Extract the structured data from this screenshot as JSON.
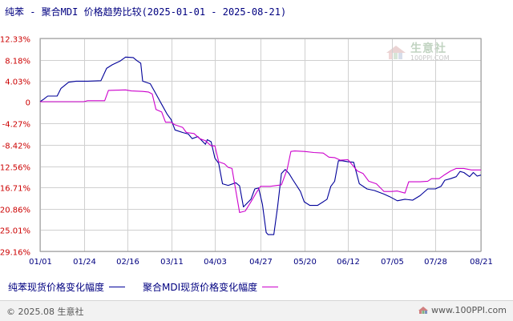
{
  "title": "纯苯 - 聚合MDI 价格趋势比较(2025-01-01 - 2025-08-21)",
  "watermark": {
    "name": "生意社",
    "site": "100PPI.COM"
  },
  "footer": {
    "copyright": "© 2025.08 生意社",
    "site": "www.100PPI.com"
  },
  "colors": {
    "series1": "#000099",
    "series2": "#cc00cc",
    "grid": "#d0d0d0",
    "text": "#000080"
  },
  "chart_data": {
    "type": "line",
    "title": "纯苯 - 聚合MDI 价格趋势比较(2025-01-01 - 2025-08-21)",
    "grid": true,
    "legend_position": "bottom",
    "x_range": [
      "2025-01-01",
      "2025-08-21"
    ],
    "x_ticks": [
      "01/01",
      "01/24",
      "02/16",
      "03/11",
      "04/03",
      "04/27",
      "05/20",
      "06/12",
      "07/05",
      "07/28",
      "08/21"
    ],
    "x_tick_dates": [
      "2025-01-01",
      "2025-01-24",
      "2025-02-16",
      "2025-03-11",
      "2025-04-03",
      "2025-04-27",
      "2025-05-20",
      "2025-06-12",
      "2025-07-05",
      "2025-07-28",
      "2025-08-21"
    ],
    "y_ticks": [
      12.33,
      8.18,
      4.03,
      0,
      -4.27,
      -8.42,
      -12.56,
      -16.71,
      -20.86,
      -25.01,
      -29.16
    ],
    "y_tick_labels": [
      "12.33%",
      "8.18%",
      "4.03%",
      "0",
      "-4.27%",
      "-8.42%",
      "-12.56%",
      "-16.71%",
      "-20.86%",
      "-25.01%",
      "-29.16%"
    ],
    "ylim": [
      -29.16,
      12.33
    ],
    "series": [
      {
        "name": "纯苯现货价格变化幅度",
        "points": [
          [
            "2025-01-01",
            0
          ],
          [
            "2025-01-03",
            0.5
          ],
          [
            "2025-01-05",
            1.1
          ],
          [
            "2025-01-10",
            1.1
          ],
          [
            "2025-01-12",
            2.6
          ],
          [
            "2025-01-16",
            3.8
          ],
          [
            "2025-01-20",
            4.0
          ],
          [
            "2025-01-26",
            4.0
          ],
          [
            "2025-02-02",
            4.1
          ],
          [
            "2025-02-05",
            6.5
          ],
          [
            "2025-02-08",
            7.2
          ],
          [
            "2025-02-12",
            7.9
          ],
          [
            "2025-02-15",
            8.7
          ],
          [
            "2025-02-19",
            8.6
          ],
          [
            "2025-02-21",
            8.0
          ],
          [
            "2025-02-23",
            7.5
          ],
          [
            "2025-02-24",
            4.0
          ],
          [
            "2025-02-28",
            3.5
          ],
          [
            "2025-03-03",
            1.5
          ],
          [
            "2025-03-06",
            -0.5
          ],
          [
            "2025-03-09",
            -2.5
          ],
          [
            "2025-03-11",
            -3.5
          ],
          [
            "2025-03-13",
            -5.5
          ],
          [
            "2025-03-17",
            -6.0
          ],
          [
            "2025-03-20",
            -6.3
          ],
          [
            "2025-03-22",
            -7.2
          ],
          [
            "2025-03-25",
            -6.8
          ],
          [
            "2025-03-29",
            -8.3
          ],
          [
            "2025-03-30",
            -7.4
          ],
          [
            "2025-04-01",
            -7.8
          ],
          [
            "2025-04-03",
            -11.0
          ],
          [
            "2025-04-05",
            -12.0
          ],
          [
            "2025-04-07",
            -16.0
          ],
          [
            "2025-04-10",
            -16.3
          ],
          [
            "2025-04-14",
            -15.8
          ],
          [
            "2025-04-16",
            -16.4
          ],
          [
            "2025-04-18",
            -20.5
          ],
          [
            "2025-04-22",
            -19.0
          ],
          [
            "2025-04-24",
            -17.0
          ],
          [
            "2025-04-26",
            -16.8
          ],
          [
            "2025-04-28",
            -20.0
          ],
          [
            "2025-04-30",
            -25.5
          ],
          [
            "2025-05-01",
            -25.9
          ],
          [
            "2025-05-04",
            -25.9
          ],
          [
            "2025-05-06",
            -20.5
          ],
          [
            "2025-05-08",
            -14.0
          ],
          [
            "2025-05-10",
            -13.2
          ],
          [
            "2025-05-12",
            -14.0
          ],
          [
            "2025-05-14",
            -15.2
          ],
          [
            "2025-05-18",
            -17.5
          ],
          [
            "2025-05-20",
            -19.5
          ],
          [
            "2025-05-23",
            -20.2
          ],
          [
            "2025-05-27",
            -20.2
          ],
          [
            "2025-05-30",
            -19.5
          ],
          [
            "2025-06-01",
            -19.0
          ],
          [
            "2025-06-03",
            -16.5
          ],
          [
            "2025-06-05",
            -15.5
          ],
          [
            "2025-06-07",
            -11.5
          ],
          [
            "2025-06-09",
            -11.5
          ],
          [
            "2025-06-12",
            -11.7
          ],
          [
            "2025-06-15",
            -11.8
          ],
          [
            "2025-06-18",
            -16.0
          ],
          [
            "2025-06-22",
            -17.0
          ],
          [
            "2025-06-26",
            -17.3
          ],
          [
            "2025-07-01",
            -18.0
          ],
          [
            "2025-07-04",
            -18.5
          ],
          [
            "2025-07-08",
            -19.3
          ],
          [
            "2025-07-12",
            -19.0
          ],
          [
            "2025-07-16",
            -19.2
          ],
          [
            "2025-07-20",
            -18.3
          ],
          [
            "2025-07-24",
            -17.0
          ],
          [
            "2025-07-28",
            -17.0
          ],
          [
            "2025-07-31",
            -16.5
          ],
          [
            "2025-08-02",
            -15.3
          ],
          [
            "2025-08-05",
            -15.0
          ],
          [
            "2025-08-08",
            -14.6
          ],
          [
            "2025-08-10",
            -13.6
          ],
          [
            "2025-08-12",
            -13.8
          ],
          [
            "2025-08-15",
            -14.6
          ],
          [
            "2025-08-17",
            -13.8
          ],
          [
            "2025-08-19",
            -14.5
          ],
          [
            "2025-08-21",
            -14.3
          ]
        ]
      },
      {
        "name": "聚合MDI现货价格变化幅度",
        "points": [
          [
            "2025-01-01",
            0
          ],
          [
            "2025-01-24",
            0
          ],
          [
            "2025-01-26",
            0.2
          ],
          [
            "2025-02-04",
            0.2
          ],
          [
            "2025-02-06",
            2.2
          ],
          [
            "2025-02-15",
            2.3
          ],
          [
            "2025-02-18",
            2.1
          ],
          [
            "2025-02-24",
            2.0
          ],
          [
            "2025-02-27",
            1.9
          ],
          [
            "2025-03-01",
            1.5
          ],
          [
            "2025-03-03",
            -1.5
          ],
          [
            "2025-03-06",
            -2.0
          ],
          [
            "2025-03-08",
            -4.0
          ],
          [
            "2025-03-11",
            -4.0
          ],
          [
            "2025-03-13",
            -4.5
          ],
          [
            "2025-03-17",
            -5.0
          ],
          [
            "2025-03-19",
            -6.0
          ],
          [
            "2025-03-23",
            -6.2
          ],
          [
            "2025-03-26",
            -7.2
          ],
          [
            "2025-03-29",
            -7.6
          ],
          [
            "2025-04-01",
            -8.6
          ],
          [
            "2025-04-03",
            -8.6
          ],
          [
            "2025-04-05",
            -11.7
          ],
          [
            "2025-04-08",
            -12.1
          ],
          [
            "2025-04-10",
            -12.8
          ],
          [
            "2025-04-12",
            -13.0
          ],
          [
            "2025-04-16",
            -21.6
          ],
          [
            "2025-04-19",
            -21.3
          ],
          [
            "2025-04-22",
            -19.5
          ],
          [
            "2025-04-25",
            -17.6
          ],
          [
            "2025-04-27",
            -16.5
          ],
          [
            "2025-05-02",
            -16.5
          ],
          [
            "2025-05-06",
            -16.3
          ],
          [
            "2025-05-08",
            -16.2
          ],
          [
            "2025-05-11",
            -13.2
          ],
          [
            "2025-05-13",
            -9.7
          ],
          [
            "2025-05-15",
            -9.6
          ],
          [
            "2025-05-20",
            -9.7
          ],
          [
            "2025-05-25",
            -9.9
          ],
          [
            "2025-05-30",
            -10.0
          ],
          [
            "2025-06-02",
            -10.8
          ],
          [
            "2025-06-05",
            -10.9
          ],
          [
            "2025-06-08",
            -11.4
          ],
          [
            "2025-06-12",
            -11.3
          ],
          [
            "2025-06-17",
            -13.5
          ],
          [
            "2025-06-20",
            -14.0
          ],
          [
            "2025-06-23",
            -15.5
          ],
          [
            "2025-06-27",
            -16.0
          ],
          [
            "2025-07-01",
            -17.5
          ],
          [
            "2025-07-05",
            -17.5
          ],
          [
            "2025-07-08",
            -17.4
          ],
          [
            "2025-07-12",
            -17.8
          ],
          [
            "2025-07-14",
            -15.6
          ],
          [
            "2025-07-20",
            -15.6
          ],
          [
            "2025-07-24",
            -15.5
          ],
          [
            "2025-07-26",
            -15.0
          ],
          [
            "2025-07-30",
            -15.0
          ],
          [
            "2025-08-02",
            -14.2
          ],
          [
            "2025-08-05",
            -13.5
          ],
          [
            "2025-08-08",
            -13.0
          ],
          [
            "2025-08-12",
            -13.0
          ],
          [
            "2025-08-16",
            -13.3
          ],
          [
            "2025-08-21",
            -13.3
          ]
        ]
      }
    ]
  }
}
